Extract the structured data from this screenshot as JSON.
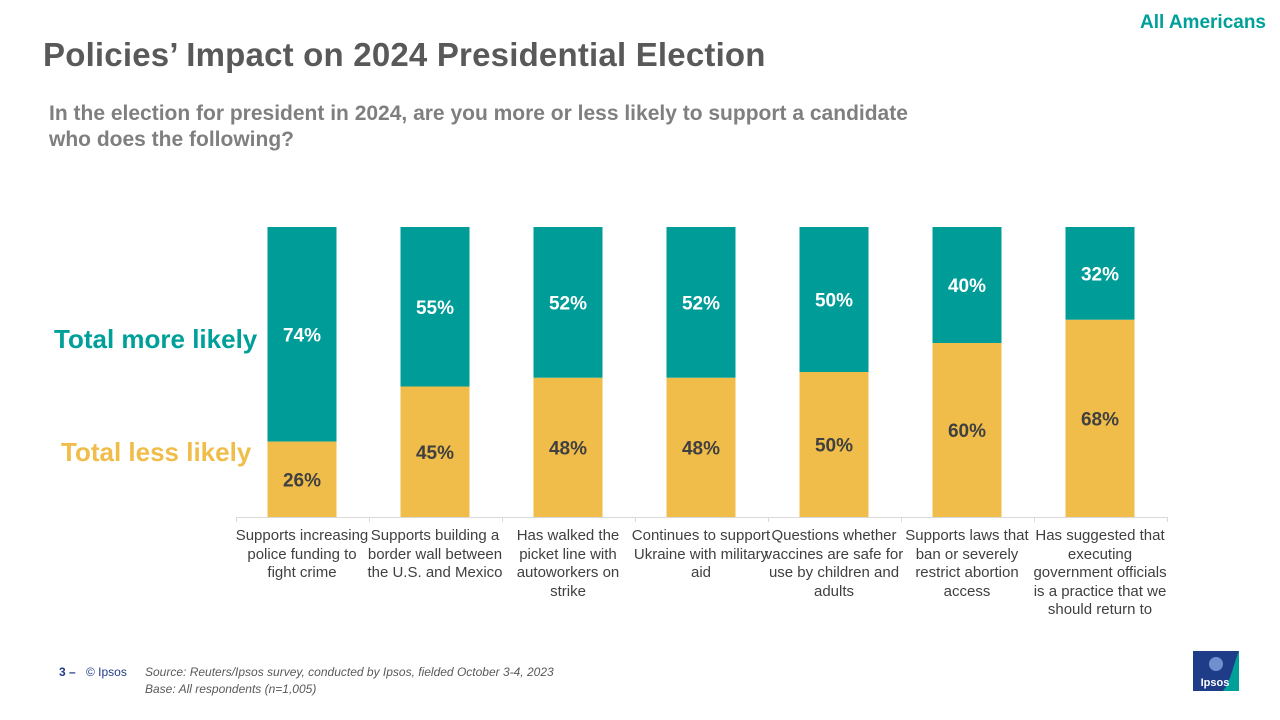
{
  "header": {
    "audience_tag": "All Americans",
    "title": "Policies’ Impact on 2024 Presidential Election",
    "question": "In the election for president in 2024, are you more or less likely to support a candidate who does the following?"
  },
  "legend": {
    "more": "Total more likely",
    "less": "Total less likely"
  },
  "chart_data": {
    "type": "bar",
    "stacked": true,
    "orientation": "vertical",
    "categories": [
      "Supports increasing police funding to fight crime",
      "Supports building a border wall between the U.S. and Mexico",
      "Has walked the picket line with autoworkers on strike",
      "Continues to support Ukraine with military aid",
      "Questions whether vaccines are safe for use by children and adults",
      "Supports laws that ban or severely restrict abortion access",
      "Has suggested that executing government officials is a practice that we should return to"
    ],
    "series": [
      {
        "name": "Total less likely",
        "color": "#F0BD4A",
        "values": [
          26,
          45,
          48,
          48,
          50,
          60,
          68
        ],
        "labels": [
          "26%",
          "45%",
          "48%",
          "48%",
          "50%",
          "60%",
          "68%"
        ]
      },
      {
        "name": "Total more likely",
        "color": "#009C98",
        "values": [
          74,
          55,
          52,
          52,
          50,
          40,
          32
        ],
        "labels": [
          "74%",
          "55%",
          "52%",
          "52%",
          "50%",
          "40%",
          "32%"
        ]
      }
    ],
    "ylim": [
      0,
      100
    ],
    "grid": false,
    "legend_position": "left"
  },
  "footer": {
    "page_number": "3",
    "separator": "–",
    "copyright": "© Ipsos",
    "source": "Source: Reuters/Ipsos survey, conducted by Ipsos, fielded October 3-4, 2023",
    "base": "Base: All respondents (n=1,005)",
    "logo_text": "Ipsos"
  },
  "colors": {
    "teal": "#009C98",
    "gold": "#F0BD4A",
    "title_gray": "#595959",
    "logo_blue": "#1f3c88",
    "logo_green": "#00A09A"
  }
}
